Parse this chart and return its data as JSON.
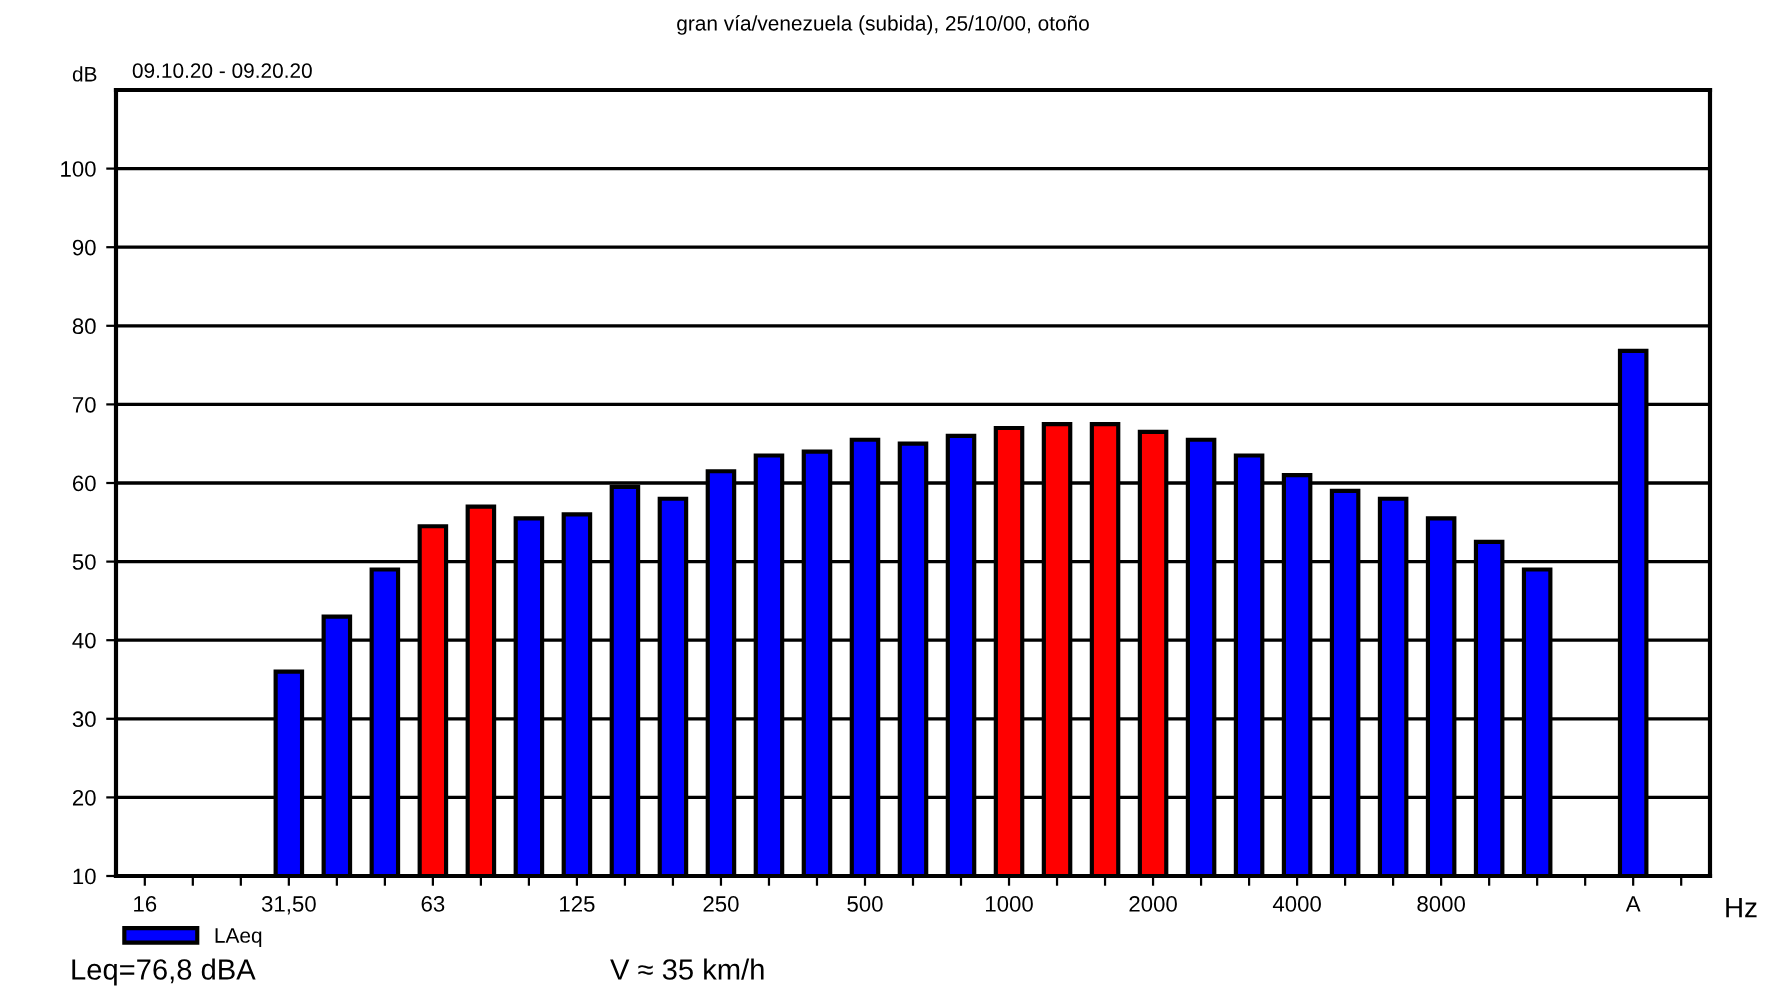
{
  "chart_data": {
    "type": "bar",
    "title": "gran vía/venezuela (subida), 25/10/00, otoño",
    "subtitle": "09.10.20 - 09.20.20",
    "ylabel": "dB",
    "xlabel": "Hz",
    "categories": [
      "16",
      null,
      null,
      "31,50",
      null,
      null,
      "63",
      null,
      null,
      "125",
      null,
      null,
      "250",
      null,
      null,
      "500",
      null,
      null,
      "1000",
      null,
      null,
      "2000",
      null,
      null,
      "4000",
      null,
      null,
      "8000",
      null,
      null,
      null,
      "A",
      null
    ],
    "series": [
      {
        "name": "LAeq",
        "color": "#0000ff",
        "values": [
          null,
          null,
          null,
          36,
          43,
          49,
          54.5,
          57,
          55.5,
          56,
          59.5,
          58,
          61.5,
          63.5,
          64,
          65.5,
          65,
          66,
          67,
          67.5,
          67.5,
          66.5,
          65.5,
          63.5,
          61,
          59,
          58,
          55.5,
          52.5,
          49,
          null,
          76.8,
          null
        ],
        "colors": [
          "#0000ff",
          "#0000ff",
          "#0000ff",
          "#0000ff",
          "#0000ff",
          "#0000ff",
          "#ff0000",
          "#ff0000",
          "#0000ff",
          "#0000ff",
          "#0000ff",
          "#0000ff",
          "#0000ff",
          "#0000ff",
          "#0000ff",
          "#0000ff",
          "#0000ff",
          "#0000ff",
          "#ff0000",
          "#ff0000",
          "#ff0000",
          "#ff0000",
          "#0000ff",
          "#0000ff",
          "#0000ff",
          "#0000ff",
          "#0000ff",
          "#0000ff",
          "#0000ff",
          "#0000ff",
          "#0000ff",
          "#0000ff",
          "#0000ff"
        ]
      }
    ],
    "ylim": [
      10,
      110
    ],
    "yticks": [
      10,
      20,
      30,
      40,
      50,
      60,
      70,
      80,
      90,
      100
    ],
    "grid": "y",
    "legend": "bottom left",
    "annotations": [
      "Leq=76,8 dBA",
      "V ≈ 35 km/h"
    ]
  }
}
